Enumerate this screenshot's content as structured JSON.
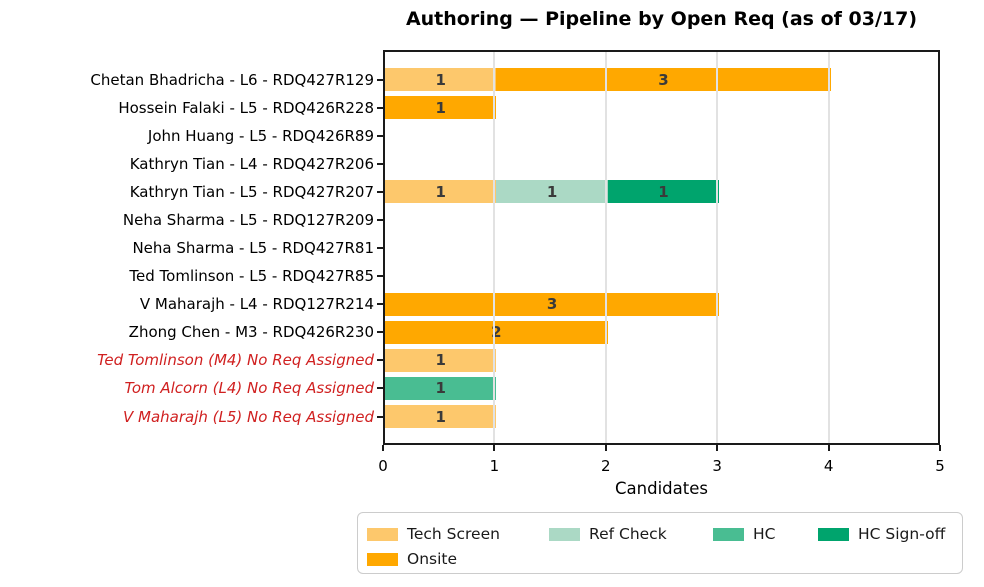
{
  "chart_data": {
    "type": "bar",
    "orientation": "horizontal",
    "stacked": true,
    "title": "Authoring — Pipeline by Open Req (as of 03/17)",
    "xlabel": "Candidates",
    "xlim": [
      0,
      5
    ],
    "xticks": [
      0,
      1,
      2,
      3,
      4,
      5
    ],
    "grid": "vertical",
    "legend_position": "bottom",
    "stages": [
      {
        "name": "Tech Screen",
        "color": "#FDC86C"
      },
      {
        "name": "Ref Check",
        "color": "#ABD9C5"
      },
      {
        "name": "HC",
        "color": "#49BD92"
      },
      {
        "name": "HC Sign-off",
        "color": "#00A46D"
      },
      {
        "name": "Onsite",
        "color": "#FFA800"
      }
    ],
    "rows": [
      {
        "label": "Chetan Bhadricha - L6 - RDQ427R129",
        "red": false,
        "segments": [
          {
            "stage": "Tech Screen",
            "value": 1
          },
          {
            "stage": "Onsite",
            "value": 3
          }
        ]
      },
      {
        "label": "Hossein Falaki - L5 - RDQ426R228",
        "red": false,
        "segments": [
          {
            "stage": "Onsite",
            "value": 1
          }
        ]
      },
      {
        "label": "John Huang - L5 - RDQ426R89",
        "red": false,
        "segments": []
      },
      {
        "label": "Kathryn Tian - L4 - RDQ427R206",
        "red": false,
        "segments": []
      },
      {
        "label": "Kathryn Tian - L5 - RDQ427R207",
        "red": false,
        "segments": [
          {
            "stage": "Tech Screen",
            "value": 1
          },
          {
            "stage": "Ref Check",
            "value": 1
          },
          {
            "stage": "HC Sign-off",
            "value": 1
          }
        ]
      },
      {
        "label": "Neha Sharma - L5 - RDQ127R209",
        "red": false,
        "segments": []
      },
      {
        "label": "Neha Sharma - L5 - RDQ427R81",
        "red": false,
        "segments": []
      },
      {
        "label": "Ted Tomlinson - L5 - RDQ427R85",
        "red": false,
        "segments": []
      },
      {
        "label": "V Maharajh - L4 - RDQ127R214",
        "red": false,
        "segments": [
          {
            "stage": "Onsite",
            "value": 3
          }
        ]
      },
      {
        "label": "Zhong Chen - M3 - RDQ426R230",
        "red": false,
        "segments": [
          {
            "stage": "Onsite",
            "value": 2
          }
        ]
      },
      {
        "label": "Ted Tomlinson (M4) No Req Assigned",
        "red": true,
        "segments": [
          {
            "stage": "Tech Screen",
            "value": 1
          }
        ]
      },
      {
        "label": "Tom Alcorn (L4) No Req Assigned",
        "red": true,
        "segments": [
          {
            "stage": "HC",
            "value": 1
          }
        ]
      },
      {
        "label": "V Maharajh (L5) No Req Assigned",
        "red": true,
        "segments": [
          {
            "stage": "Tech Screen",
            "value": 1
          }
        ]
      }
    ],
    "legend_order": [
      "Tech Screen",
      "Ref Check",
      "HC",
      "HC Sign-off",
      "Onsite"
    ],
    "colors": {
      "value_label": "#3A3A3A",
      "red_row_label": "#D02020",
      "normal_row_label": "#000000",
      "spine": "#1A1A1A",
      "gridline": "#E2E2E2"
    }
  }
}
